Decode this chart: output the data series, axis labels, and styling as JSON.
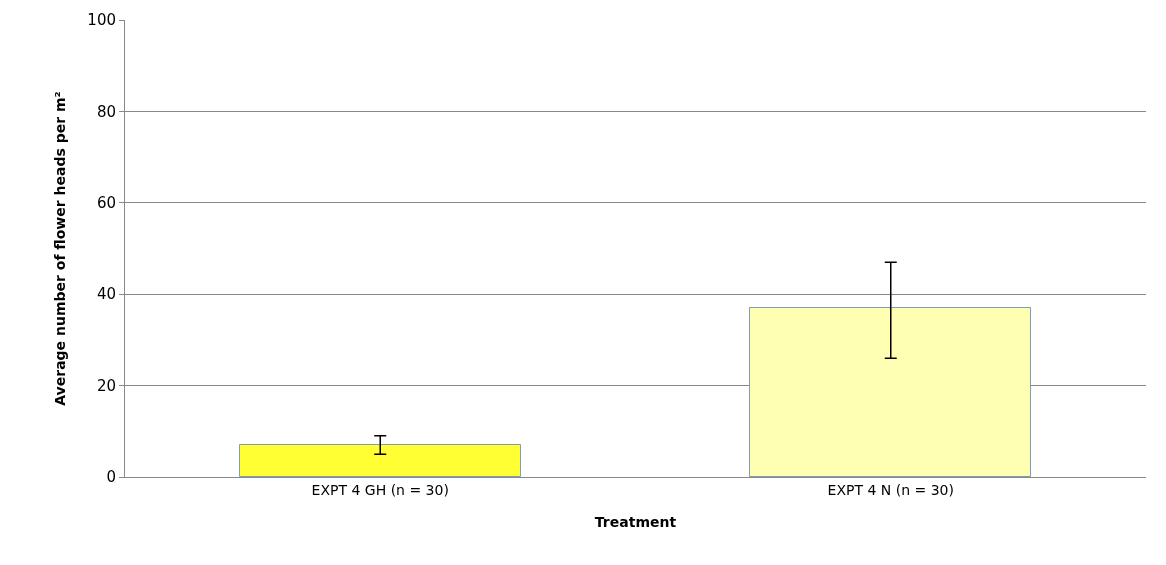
{
  "chart_data": {
    "type": "bar",
    "xlabel": "Treatment",
    "ylabel": "Average number of flower heads per m²",
    "categories": [
      "EXPT 4 GH (n = 30)",
      "EXPT 4 N (n = 30)"
    ],
    "values": [
      7,
      37
    ],
    "colors": [
      "#ffff33",
      "#ffffb3"
    ],
    "errors": [
      [
        5,
        9
      ],
      [
        26,
        47
      ]
    ],
    "ylim": [
      0,
      100
    ],
    "yticks": [
      0,
      20,
      40,
      60,
      80,
      100
    ],
    "grid": "y"
  }
}
